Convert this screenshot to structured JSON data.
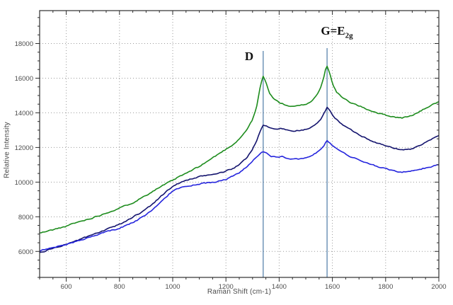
{
  "chart_data": {
    "type": "line",
    "title": "",
    "xlabel": "Raman Shift (cm-1)",
    "ylabel": "Relative Intensity",
    "xlim": [
      500,
      2000
    ],
    "ylim": [
      4500,
      19900
    ],
    "x_major_ticks": [
      600,
      800,
      1000,
      1200,
      1400,
      1600,
      1800,
      2000
    ],
    "x_minor_step": 50,
    "y_major_ticks": [
      6000,
      8000,
      10000,
      12000,
      14000,
      16000,
      18000
    ],
    "y_minor_step": 500,
    "grid": "dotted-major",
    "legend": "none",
    "annotations": [
      {
        "name": "D-band",
        "label": "D",
        "x": 1340
      },
      {
        "name": "G-band",
        "label_main": "G=E",
        "label_sub": "2g",
        "x": 1580
      }
    ],
    "colors": {
      "marker_line": "#4d7ba7",
      "grid": "#9a9a9a",
      "frame": "#2e2e2e",
      "tick_text": "#4d4d4d"
    },
    "series": [
      {
        "name": "upper-spectrum",
        "color": "#1d8c1d",
        "noise": 60,
        "seed": 11,
        "points": [
          [
            500,
            7050
          ],
          [
            525,
            7150
          ],
          [
            550,
            7250
          ],
          [
            575,
            7350
          ],
          [
            600,
            7450
          ],
          [
            625,
            7600
          ],
          [
            650,
            7720
          ],
          [
            675,
            7830
          ],
          [
            700,
            7950
          ],
          [
            725,
            8080
          ],
          [
            750,
            8220
          ],
          [
            775,
            8360
          ],
          [
            800,
            8500
          ],
          [
            825,
            8650
          ],
          [
            850,
            8820
          ],
          [
            875,
            9030
          ],
          [
            900,
            9250
          ],
          [
            925,
            9480
          ],
          [
            950,
            9700
          ],
          [
            975,
            9900
          ],
          [
            1000,
            10100
          ],
          [
            1025,
            10320
          ],
          [
            1050,
            10500
          ],
          [
            1075,
            10700
          ],
          [
            1100,
            10900
          ],
          [
            1125,
            11150
          ],
          [
            1150,
            11400
          ],
          [
            1175,
            11650
          ],
          [
            1200,
            11900
          ],
          [
            1225,
            12150
          ],
          [
            1250,
            12500
          ],
          [
            1275,
            12950
          ],
          [
            1300,
            13600
          ],
          [
            1315,
            14300
          ],
          [
            1330,
            15600
          ],
          [
            1340,
            16100
          ],
          [
            1352,
            15700
          ],
          [
            1365,
            15100
          ],
          [
            1380,
            14800
          ],
          [
            1400,
            14600
          ],
          [
            1425,
            14450
          ],
          [
            1450,
            14350
          ],
          [
            1475,
            14400
          ],
          [
            1500,
            14500
          ],
          [
            1520,
            14650
          ],
          [
            1540,
            15000
          ],
          [
            1555,
            15400
          ],
          [
            1568,
            16100
          ],
          [
            1578,
            16800
          ],
          [
            1588,
            16400
          ],
          [
            1600,
            15700
          ],
          [
            1615,
            15200
          ],
          [
            1635,
            14900
          ],
          [
            1660,
            14650
          ],
          [
            1700,
            14400
          ],
          [
            1740,
            14150
          ],
          [
            1780,
            13950
          ],
          [
            1820,
            13800
          ],
          [
            1860,
            13700
          ],
          [
            1890,
            13800
          ],
          [
            1920,
            14000
          ],
          [
            1960,
            14350
          ],
          [
            2000,
            14650
          ]
        ]
      },
      {
        "name": "middle-spectrum",
        "color": "#14146e",
        "noise": 60,
        "seed": 23,
        "points": [
          [
            500,
            5900
          ],
          [
            525,
            6050
          ],
          [
            550,
            6180
          ],
          [
            575,
            6300
          ],
          [
            600,
            6420
          ],
          [
            625,
            6550
          ],
          [
            650,
            6680
          ],
          [
            675,
            6820
          ],
          [
            700,
            6960
          ],
          [
            725,
            7100
          ],
          [
            750,
            7250
          ],
          [
            775,
            7400
          ],
          [
            800,
            7560
          ],
          [
            825,
            7750
          ],
          [
            850,
            7980
          ],
          [
            875,
            8200
          ],
          [
            900,
            8450
          ],
          [
            925,
            8750
          ],
          [
            950,
            9100
          ],
          [
            975,
            9450
          ],
          [
            1000,
            9750
          ],
          [
            1025,
            9950
          ],
          [
            1050,
            10100
          ],
          [
            1075,
            10200
          ],
          [
            1100,
            10300
          ],
          [
            1125,
            10380
          ],
          [
            1150,
            10450
          ],
          [
            1175,
            10520
          ],
          [
            1200,
            10620
          ],
          [
            1225,
            10780
          ],
          [
            1250,
            11000
          ],
          [
            1275,
            11350
          ],
          [
            1300,
            11900
          ],
          [
            1315,
            12400
          ],
          [
            1330,
            13000
          ],
          [
            1340,
            13300
          ],
          [
            1355,
            13200
          ],
          [
            1370,
            13100
          ],
          [
            1390,
            13050
          ],
          [
            1410,
            13100
          ],
          [
            1430,
            13000
          ],
          [
            1450,
            12950
          ],
          [
            1475,
            12980
          ],
          [
            1500,
            13050
          ],
          [
            1520,
            13150
          ],
          [
            1540,
            13350
          ],
          [
            1555,
            13600
          ],
          [
            1568,
            13950
          ],
          [
            1580,
            14300
          ],
          [
            1592,
            14100
          ],
          [
            1605,
            13800
          ],
          [
            1620,
            13550
          ],
          [
            1640,
            13300
          ],
          [
            1665,
            13050
          ],
          [
            1700,
            12750
          ],
          [
            1740,
            12450
          ],
          [
            1780,
            12200
          ],
          [
            1820,
            12000
          ],
          [
            1860,
            11870
          ],
          [
            1890,
            11900
          ],
          [
            1920,
            12050
          ],
          [
            1960,
            12350
          ],
          [
            2000,
            12700
          ]
        ]
      },
      {
        "name": "lower-spectrum",
        "color": "#2424dd",
        "noise": 60,
        "seed": 37,
        "points": [
          [
            500,
            6050
          ],
          [
            525,
            6120
          ],
          [
            550,
            6220
          ],
          [
            575,
            6320
          ],
          [
            600,
            6400
          ],
          [
            625,
            6520
          ],
          [
            650,
            6640
          ],
          [
            675,
            6760
          ],
          [
            700,
            6880
          ],
          [
            725,
            7000
          ],
          [
            750,
            7120
          ],
          [
            775,
            7230
          ],
          [
            800,
            7350
          ],
          [
            825,
            7500
          ],
          [
            850,
            7680
          ],
          [
            875,
            7880
          ],
          [
            900,
            8100
          ],
          [
            925,
            8400
          ],
          [
            950,
            8750
          ],
          [
            975,
            9150
          ],
          [
            1000,
            9500
          ],
          [
            1025,
            9650
          ],
          [
            1050,
            9750
          ],
          [
            1075,
            9820
          ],
          [
            1100,
            9880
          ],
          [
            1125,
            9940
          ],
          [
            1150,
            10000
          ],
          [
            1175,
            10070
          ],
          [
            1200,
            10170
          ],
          [
            1225,
            10320
          ],
          [
            1250,
            10550
          ],
          [
            1275,
            10850
          ],
          [
            1300,
            11200
          ],
          [
            1315,
            11450
          ],
          [
            1330,
            11700
          ],
          [
            1342,
            11800
          ],
          [
            1355,
            11650
          ],
          [
            1370,
            11500
          ],
          [
            1390,
            11450
          ],
          [
            1410,
            11480
          ],
          [
            1430,
            11380
          ],
          [
            1450,
            11320
          ],
          [
            1475,
            11350
          ],
          [
            1500,
            11430
          ],
          [
            1520,
            11530
          ],
          [
            1540,
            11700
          ],
          [
            1555,
            11880
          ],
          [
            1568,
            12120
          ],
          [
            1580,
            12400
          ],
          [
            1592,
            12250
          ],
          [
            1605,
            12050
          ],
          [
            1620,
            11870
          ],
          [
            1640,
            11700
          ],
          [
            1665,
            11500
          ],
          [
            1700,
            11280
          ],
          [
            1740,
            11050
          ],
          [
            1780,
            10850
          ],
          [
            1820,
            10700
          ],
          [
            1860,
            10580
          ],
          [
            1890,
            10600
          ],
          [
            1920,
            10700
          ],
          [
            1960,
            10850
          ],
          [
            2000,
            11000
          ]
        ]
      }
    ]
  }
}
